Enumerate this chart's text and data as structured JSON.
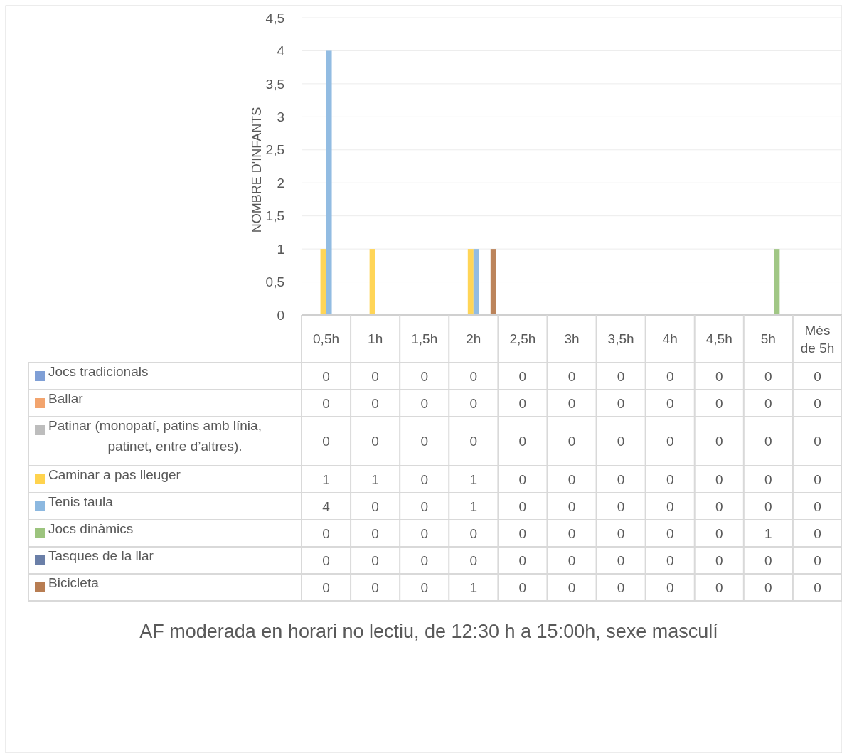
{
  "chart_data": {
    "type": "bar",
    "title": "AF moderada en horari no lectiu, de 12:30 h a 15:00h, sexe masculí",
    "ylabel": "NOMBRE D'INFANTS",
    "categories": [
      "0,5h",
      "1h",
      "1,5h",
      "2h",
      "2,5h",
      "3h",
      "3,5h",
      "4h",
      "4,5h",
      "5h",
      "Més de 5h"
    ],
    "series": [
      {
        "name": "Jocs tradicionals",
        "color": "#7f9fd6",
        "values": [
          0,
          0,
          0,
          0,
          0,
          0,
          0,
          0,
          0,
          0,
          0
        ]
      },
      {
        "name": "Ballar",
        "color": "#f2a46e",
        "values": [
          0,
          0,
          0,
          0,
          0,
          0,
          0,
          0,
          0,
          0,
          0
        ]
      },
      {
        "name": "Patinar (monopatí, patins amb línia, patinet, entre d’altres).",
        "color": "#bdbdbd",
        "values": [
          0,
          0,
          0,
          0,
          0,
          0,
          0,
          0,
          0,
          0,
          0
        ]
      },
      {
        "name": "Caminar a pas lleuger",
        "color": "#ffd34e",
        "values": [
          1,
          1,
          0,
          1,
          0,
          0,
          0,
          0,
          0,
          0,
          0
        ]
      },
      {
        "name": "Tenis taula",
        "color": "#8cb8e0",
        "values": [
          4,
          0,
          0,
          1,
          0,
          0,
          0,
          0,
          0,
          0,
          0
        ]
      },
      {
        "name": "Jocs dinàmics",
        "color": "#9cc47e",
        "values": [
          0,
          0,
          0,
          0,
          0,
          0,
          0,
          0,
          0,
          1,
          0
        ]
      },
      {
        "name": "Tasques de la llar",
        "color": "#6a7fa8",
        "values": [
          0,
          0,
          0,
          0,
          0,
          0,
          0,
          0,
          0,
          0,
          0
        ]
      },
      {
        "name": "Bicicleta",
        "color": "#b87d52",
        "values": [
          0,
          0,
          0,
          1,
          0,
          0,
          0,
          0,
          0,
          0,
          0
        ]
      }
    ],
    "ylim": [
      0,
      4.5
    ],
    "yticks": [
      {
        "value": 0,
        "label": "0"
      },
      {
        "value": 0.5,
        "label": "0,5"
      },
      {
        "value": 1,
        "label": "1"
      },
      {
        "value": 1.5,
        "label": "1,5"
      },
      {
        "value": 2,
        "label": "2"
      },
      {
        "value": 2.5,
        "label": "2,5"
      },
      {
        "value": 3,
        "label": "3"
      },
      {
        "value": 3.5,
        "label": "3,5"
      },
      {
        "value": 4,
        "label": "4"
      },
      {
        "value": 4.5,
        "label": "4,5"
      }
    ],
    "grid": "y",
    "legend": "bottom",
    "data_labels": true
  }
}
